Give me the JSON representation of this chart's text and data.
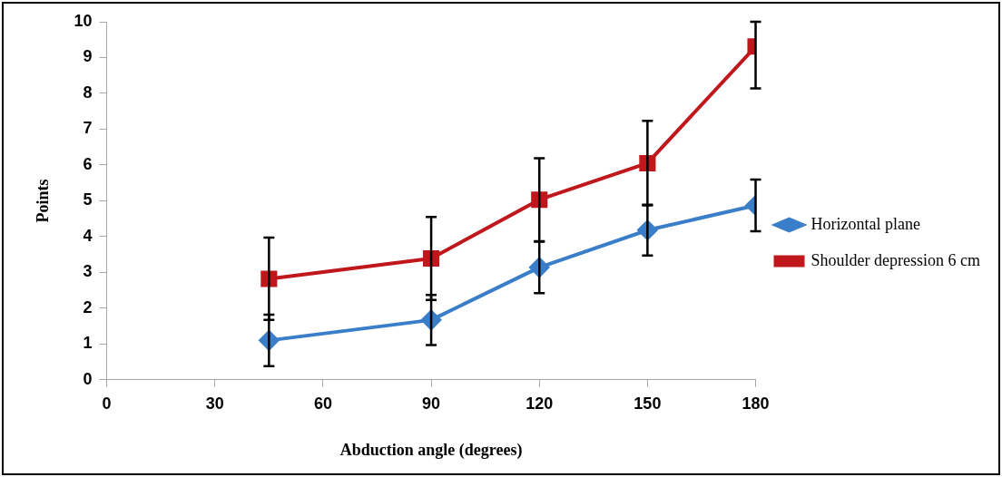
{
  "chart_data": {
    "type": "line",
    "xlabel": "Abduction angle (degrees)",
    "ylabel": "Points",
    "x": [
      45,
      90,
      120,
      150,
      180
    ],
    "series": [
      {
        "name": "Horizontal plane",
        "color": "#3a7dc9",
        "marker": "diamond",
        "values": [
          1.1,
          1.67,
          3.14,
          4.18,
          4.87
        ],
        "errors": [
          0.72,
          0.7,
          0.72,
          0.71,
          0.72
        ]
      },
      {
        "name": "Shoulder depression 6 cm",
        "color": "#c0171c",
        "marker": "square",
        "values": [
          2.82,
          3.39,
          5.03,
          6.05,
          9.31
        ],
        "errors": [
          1.15,
          1.16,
          1.16,
          1.18,
          [
            8.14,
            10
          ]
        ]
      }
    ],
    "xlim": [
      0,
      180
    ],
    "xticks": [
      0,
      30,
      60,
      90,
      120,
      150,
      180
    ],
    "ylim": [
      0,
      10
    ],
    "yticks": [
      0,
      1,
      2,
      3,
      4,
      5,
      6,
      7,
      8,
      9,
      10
    ],
    "grid": false,
    "legend": "right",
    "line_style": "solid"
  }
}
